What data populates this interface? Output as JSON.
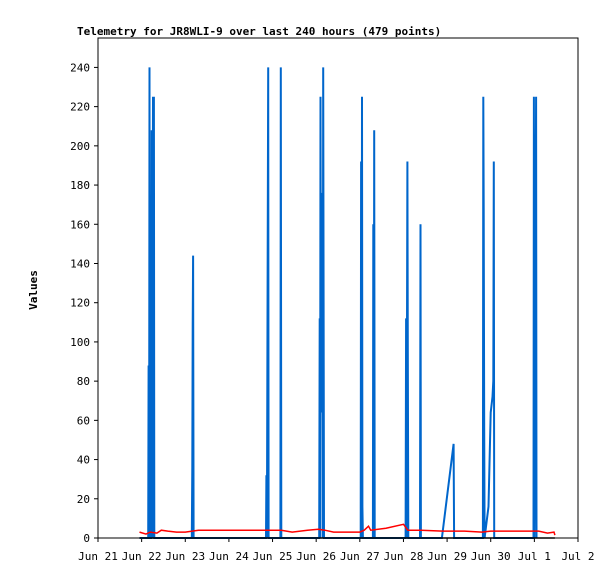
{
  "chart_data": {
    "type": "line",
    "title": "Telemetry for JR8WLI-9 over last 240 hours (479 points)",
    "ylabel": "Values",
    "xlabel": "",
    "ylim": [
      0,
      255
    ],
    "xlim": [
      "2021-06-21",
      "2021-07-02"
    ],
    "y_ticks": [
      0,
      20,
      40,
      60,
      80,
      100,
      120,
      140,
      160,
      180,
      200,
      220,
      240
    ],
    "x_tick_labels": [
      "Jun 21",
      "Jun 22",
      "Jun 23",
      "Jun 24",
      "Jun 25",
      "Jun 26",
      "Jun 27",
      "Jun 28",
      "Jun 29",
      "Jun 30",
      "Jul 1",
      "Jul 2"
    ],
    "grid": false,
    "legend": "none",
    "colors": {
      "series1": "#0066cc",
      "series2": "#ff0000",
      "series3": "#000000"
    },
    "series": [
      {
        "color": "#0066cc",
        "points": [
          [
            21.95,
            0
          ],
          [
            22.15,
            0
          ],
          [
            22.16,
            88
          ],
          [
            22.17,
            0
          ],
          [
            22.18,
            240
          ],
          [
            22.19,
            0
          ],
          [
            22.22,
            0
          ],
          [
            22.23,
            208
          ],
          [
            22.235,
            64
          ],
          [
            22.24,
            0
          ],
          [
            22.26,
            225
          ],
          [
            22.27,
            0
          ],
          [
            22.28,
            225
          ],
          [
            22.29,
            0
          ],
          [
            23.15,
            0
          ],
          [
            23.16,
            36
          ],
          [
            23.17,
            108
          ],
          [
            23.18,
            144
          ],
          [
            23.19,
            0
          ],
          [
            24.85,
            0
          ],
          [
            24.86,
            32
          ],
          [
            24.87,
            0
          ],
          [
            24.9,
            240
          ],
          [
            24.91,
            0
          ],
          [
            25.18,
            0
          ],
          [
            25.19,
            240
          ],
          [
            25.2,
            0
          ],
          [
            26.07,
            0
          ],
          [
            26.08,
            112
          ],
          [
            26.09,
            0
          ],
          [
            26.1,
            225
          ],
          [
            26.11,
            64
          ],
          [
            26.12,
            106
          ],
          [
            26.14,
            176
          ],
          [
            26.15,
            0
          ],
          [
            26.16,
            240
          ],
          [
            26.17,
            120
          ],
          [
            26.18,
            0
          ],
          [
            27.02,
            0
          ],
          [
            27.03,
            192
          ],
          [
            27.04,
            0
          ],
          [
            27.05,
            225
          ],
          [
            27.06,
            16
          ],
          [
            27.07,
            0
          ],
          [
            27.3,
            0
          ],
          [
            27.31,
            160
          ],
          [
            27.32,
            0
          ],
          [
            27.33,
            208
          ],
          [
            27.34,
            0
          ],
          [
            28.05,
            0
          ],
          [
            28.06,
            112
          ],
          [
            28.07,
            0
          ],
          [
            28.09,
            192
          ],
          [
            28.1,
            96
          ],
          [
            28.11,
            0
          ],
          [
            28.38,
            0
          ],
          [
            28.39,
            160
          ],
          [
            28.4,
            0
          ],
          [
            28.88,
            0
          ],
          [
            29.15,
            48
          ],
          [
            29.16,
            0
          ],
          [
            29.82,
            0
          ],
          [
            29.83,
            225
          ],
          [
            29.84,
            168
          ],
          [
            29.85,
            56
          ],
          [
            29.86,
            0
          ],
          [
            29.95,
            16
          ],
          [
            30.0,
            64
          ],
          [
            30.04,
            72
          ],
          [
            30.06,
            80
          ],
          [
            30.07,
            192
          ],
          [
            30.08,
            0
          ],
          [
            30.98,
            0
          ],
          [
            30.99,
            225
          ],
          [
            31.0,
            0
          ],
          [
            31.04,
            225
          ],
          [
            31.05,
            0
          ]
        ]
      },
      {
        "color": "#ff0000",
        "points": [
          [
            21.95,
            3
          ],
          [
            22.1,
            2
          ],
          [
            22.2,
            3
          ],
          [
            22.35,
            2.5
          ],
          [
            22.45,
            4
          ],
          [
            22.6,
            3.5
          ],
          [
            22.8,
            3
          ],
          [
            23.0,
            3
          ],
          [
            23.3,
            4
          ],
          [
            24.0,
            4
          ],
          [
            24.8,
            4
          ],
          [
            25.2,
            4
          ],
          [
            25.45,
            3
          ],
          [
            25.8,
            4
          ],
          [
            26.05,
            4.5
          ],
          [
            26.2,
            4
          ],
          [
            26.4,
            3
          ],
          [
            26.9,
            3
          ],
          [
            27.0,
            3
          ],
          [
            27.1,
            4
          ],
          [
            27.2,
            6
          ],
          [
            27.25,
            4
          ],
          [
            27.6,
            5
          ],
          [
            28.0,
            7
          ],
          [
            28.1,
            4
          ],
          [
            28.4,
            4
          ],
          [
            28.9,
            3.5
          ],
          [
            29.4,
            3.5
          ],
          [
            29.8,
            3
          ],
          [
            30.0,
            3.5
          ],
          [
            30.5,
            3.5
          ],
          [
            31.1,
            3.5
          ],
          [
            31.3,
            2.5
          ],
          [
            31.45,
            3
          ],
          [
            31.47,
            1.5
          ]
        ]
      },
      {
        "color": "#000000",
        "points": [
          [
            21.95,
            0
          ],
          [
            31.47,
            0
          ]
        ]
      }
    ]
  }
}
